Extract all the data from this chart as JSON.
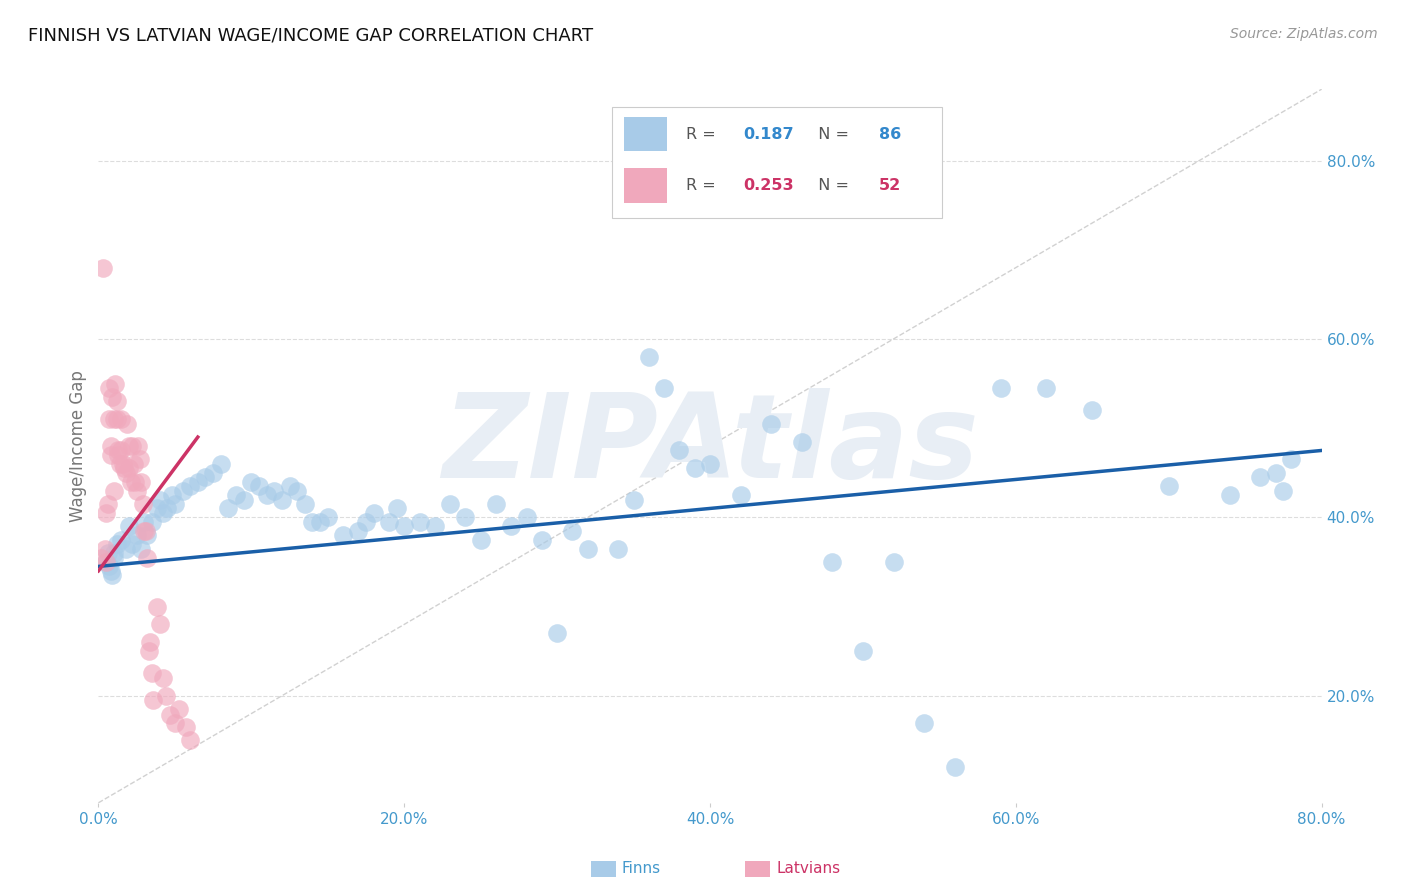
{
  "title": "FINNISH VS LATVIAN WAGE/INCOME GAP CORRELATION CHART",
  "source": "Source: ZipAtlas.com",
  "ylabel": "Wage/Income Gap",
  "right_ytick_labels": [
    "20.0%",
    "40.0%",
    "60.0%",
    "80.0%"
  ],
  "right_ytick_values": [
    0.2,
    0.4,
    0.6,
    0.8
  ],
  "xlim": [
    0.0,
    0.8
  ],
  "ylim": [
    0.08,
    0.88
  ],
  "legend_R_finns": "0.187",
  "legend_N_finns": "86",
  "legend_R_latvians": "0.253",
  "legend_N_latvians": "52",
  "blue_scatter_color": "#A8CBE8",
  "pink_scatter_color": "#F0A8BC",
  "blue_line_color": "#1A5FA8",
  "pink_line_color": "#CC3366",
  "axis_label_color": "#4499CC",
  "title_color": "#111111",
  "source_color": "#999999",
  "ylabel_color": "#777777",
  "grid_color": "#DDDDDD",
  "diag_color": "#CCCCCC",
  "watermark_color": "#E8EEF5",
  "legend_blue_val_color": "#3388CC",
  "legend_pink_val_color": "#CC3366",
  "legend_label_color": "#555555",
  "scatter_size": 180,
  "scatter_alpha": 0.65,
  "finns_x": [
    0.005,
    0.006,
    0.007,
    0.008,
    0.009,
    0.01,
    0.01,
    0.012,
    0.015,
    0.018,
    0.02,
    0.022,
    0.025,
    0.028,
    0.03,
    0.032,
    0.035,
    0.038,
    0.04,
    0.042,
    0.045,
    0.048,
    0.05,
    0.055,
    0.06,
    0.065,
    0.07,
    0.075,
    0.08,
    0.085,
    0.09,
    0.095,
    0.1,
    0.105,
    0.11,
    0.115,
    0.12,
    0.125,
    0.13,
    0.135,
    0.14,
    0.145,
    0.15,
    0.16,
    0.17,
    0.175,
    0.18,
    0.19,
    0.195,
    0.2,
    0.21,
    0.22,
    0.23,
    0.24,
    0.25,
    0.26,
    0.27,
    0.28,
    0.29,
    0.3,
    0.31,
    0.32,
    0.34,
    0.35,
    0.36,
    0.37,
    0.38,
    0.39,
    0.4,
    0.42,
    0.44,
    0.46,
    0.48,
    0.5,
    0.52,
    0.54,
    0.56,
    0.59,
    0.62,
    0.65,
    0.7,
    0.74,
    0.76,
    0.77,
    0.775,
    0.78
  ],
  "finns_y": [
    0.35,
    0.36,
    0.345,
    0.34,
    0.335,
    0.355,
    0.36,
    0.37,
    0.375,
    0.365,
    0.39,
    0.37,
    0.38,
    0.365,
    0.395,
    0.38,
    0.395,
    0.41,
    0.42,
    0.405,
    0.41,
    0.425,
    0.415,
    0.43,
    0.435,
    0.44,
    0.445,
    0.45,
    0.46,
    0.41,
    0.425,
    0.42,
    0.44,
    0.435,
    0.425,
    0.43,
    0.42,
    0.435,
    0.43,
    0.415,
    0.395,
    0.395,
    0.4,
    0.38,
    0.385,
    0.395,
    0.405,
    0.395,
    0.41,
    0.39,
    0.395,
    0.39,
    0.415,
    0.4,
    0.375,
    0.415,
    0.39,
    0.4,
    0.375,
    0.27,
    0.385,
    0.365,
    0.365,
    0.42,
    0.58,
    0.545,
    0.475,
    0.455,
    0.46,
    0.425,
    0.505,
    0.485,
    0.35,
    0.25,
    0.35,
    0.17,
    0.12,
    0.545,
    0.545,
    0.52,
    0.435,
    0.425,
    0.445,
    0.45,
    0.43,
    0.465
  ],
  "latvians_x": [
    0.002,
    0.003,
    0.004,
    0.005,
    0.005,
    0.006,
    0.007,
    0.007,
    0.008,
    0.008,
    0.009,
    0.01,
    0.01,
    0.011,
    0.012,
    0.012,
    0.013,
    0.013,
    0.014,
    0.015,
    0.015,
    0.016,
    0.017,
    0.018,
    0.019,
    0.02,
    0.02,
    0.021,
    0.022,
    0.023,
    0.024,
    0.025,
    0.026,
    0.027,
    0.028,
    0.029,
    0.03,
    0.031,
    0.032,
    0.033,
    0.034,
    0.035,
    0.036,
    0.038,
    0.04,
    0.042,
    0.044,
    0.047,
    0.05,
    0.053,
    0.057,
    0.06
  ],
  "latvians_y": [
    0.355,
    0.68,
    0.365,
    0.35,
    0.405,
    0.415,
    0.545,
    0.51,
    0.48,
    0.47,
    0.535,
    0.51,
    0.43,
    0.55,
    0.53,
    0.51,
    0.475,
    0.47,
    0.46,
    0.51,
    0.475,
    0.46,
    0.455,
    0.45,
    0.505,
    0.48,
    0.455,
    0.44,
    0.48,
    0.46,
    0.44,
    0.43,
    0.48,
    0.465,
    0.44,
    0.415,
    0.385,
    0.385,
    0.355,
    0.25,
    0.26,
    0.225,
    0.195,
    0.3,
    0.28,
    0.22,
    0.2,
    0.178,
    0.17,
    0.185,
    0.165,
    0.15
  ],
  "blue_trendline": [
    0.0,
    0.8,
    0.345,
    0.475
  ],
  "pink_trendline": [
    0.0,
    0.065,
    0.34,
    0.49
  ]
}
